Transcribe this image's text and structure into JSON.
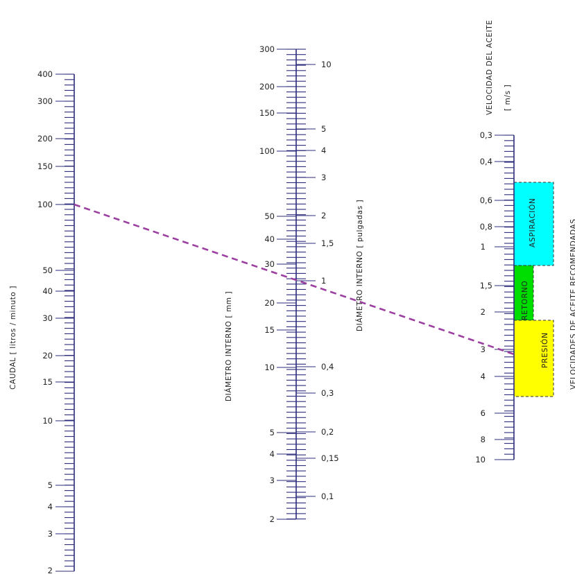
{
  "titles": {
    "caudal": "CAUDAL [ litros / minuto ]",
    "diametro_mm": "DIÁMETRO INTERNO [ mm ]",
    "diametro_in": "DIÁMETRO INTERNO [ pulgadas ]",
    "velocidad": "VELOCIDAD DEL ACEITE",
    "velocidad_unit": "[ m/s ]",
    "recomendadas": "VELOCIDADES DE ACEITE RECOMENDADAS"
  },
  "scales": {
    "caudal": [
      "400",
      "300",
      "200",
      "150",
      "100",
      "50",
      "40",
      "30",
      "20",
      "15",
      "10",
      "5",
      "4",
      "3",
      "2"
    ],
    "diametro_mm": [
      "300",
      "200",
      "150",
      "100",
      "50",
      "40",
      "30",
      "20",
      "15",
      "10",
      "5",
      "4",
      "3",
      "2"
    ],
    "diametro_in": [
      "10",
      "5",
      "4",
      "3",
      "2",
      "1,5",
      "1",
      "0,4",
      "0,3",
      "0,2",
      "0,15",
      "0,1"
    ],
    "velocidad": [
      "0,3",
      "0,4",
      "0,6",
      "0,8",
      "1",
      "1,5",
      "2",
      "3",
      "4",
      "6",
      "8",
      "10"
    ]
  },
  "zones": {
    "aspiracion": {
      "label": "ASPIRACIÓN",
      "color": "#00ffff",
      "range": "0,5 – 1,5"
    },
    "retorno": {
      "label": "RETORNO",
      "color": "#00dd00",
      "range": "1,5 – 2,5"
    },
    "presion": {
      "label": "PRESIÓN",
      "color": "#ffff00",
      "range": "2,5 – 5"
    }
  },
  "example_line": {
    "color": "#9b3fa0",
    "caudal": "100",
    "diametro_in": "1",
    "velocidad": "3"
  }
}
